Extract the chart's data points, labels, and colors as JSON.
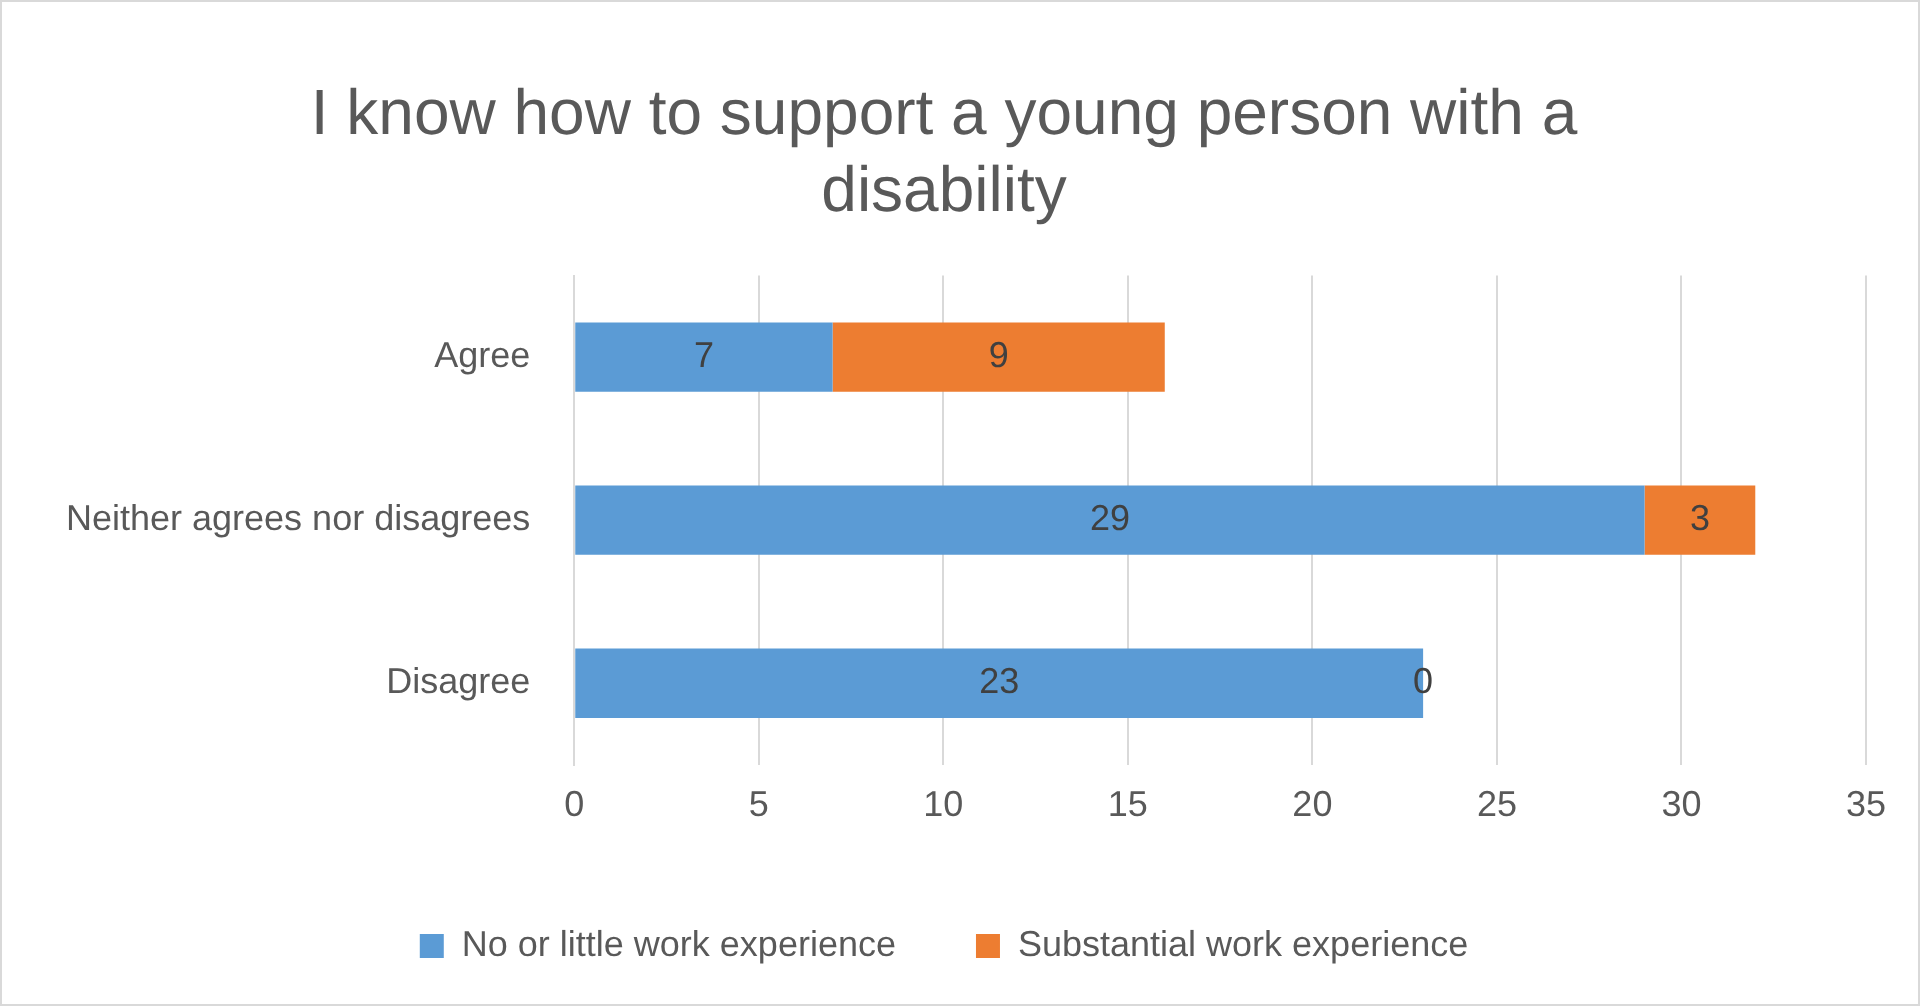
{
  "chart_data": {
    "type": "bar",
    "orientation": "horizontal",
    "stacked": true,
    "title": "I know how to support a young person with a disability",
    "categories": [
      "Agree",
      "Neither agrees nor disagrees",
      "Disagree"
    ],
    "series": [
      {
        "name": "No or little work experience",
        "color": "#5b9bd5",
        "values": [
          7,
          29,
          23
        ]
      },
      {
        "name": "Substantial work experience",
        "color": "#ed7d31",
        "values": [
          9,
          3,
          0
        ]
      }
    ],
    "xlim": [
      0,
      35
    ],
    "xticks": [
      0,
      5,
      10,
      15,
      20,
      25,
      30,
      35
    ],
    "grid": "x",
    "legend": "bottom",
    "data_labels": true
  }
}
